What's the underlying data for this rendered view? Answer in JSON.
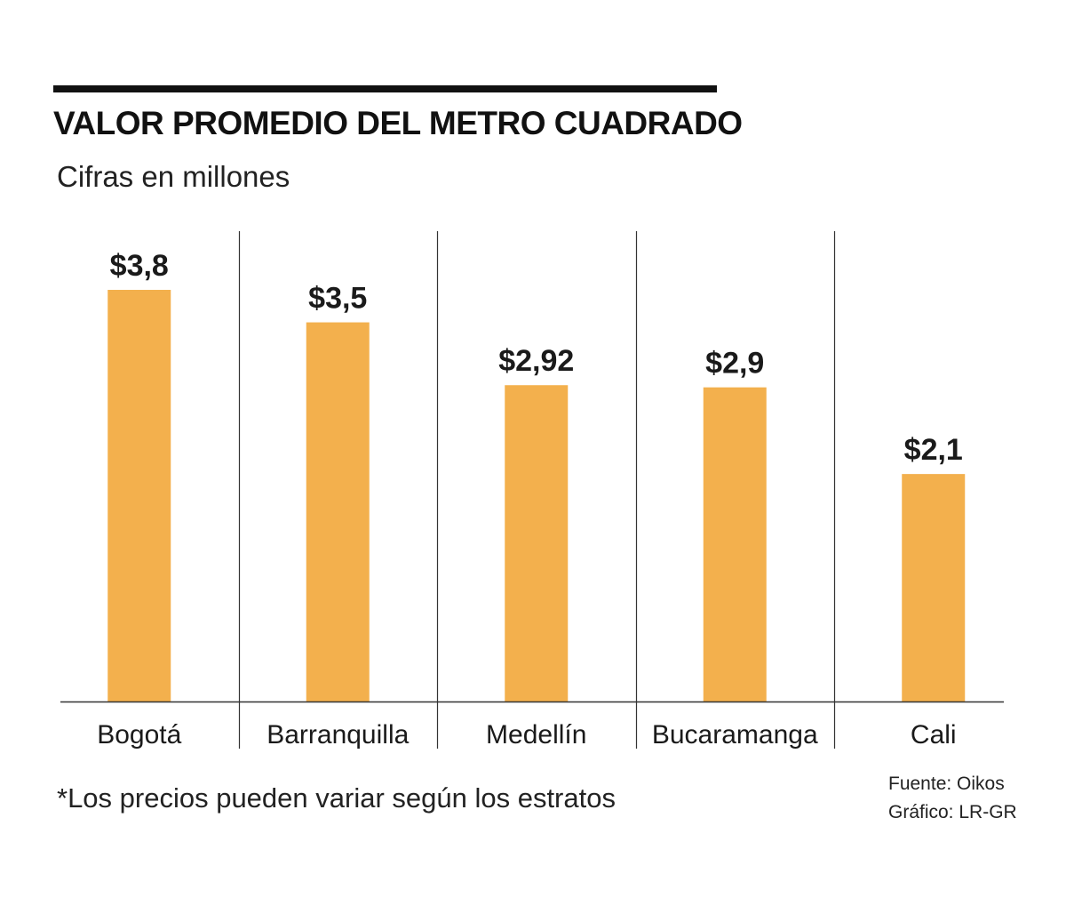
{
  "header": {
    "title": "VALOR PROMEDIO DEL METRO CUADRADO",
    "subtitle": "Cifras en millones"
  },
  "footer": {
    "note": "*Los precios pueden variar según los estratos",
    "source": "Fuente: Oikos",
    "credit": "Gráfico: LR-GR"
  },
  "colors": {
    "bar": "#F3B04D",
    "rule": "#111111",
    "divider": "#333333",
    "text": "#1a1a1a"
  },
  "chart_data": {
    "type": "bar",
    "title": "VALOR PROMEDIO DEL METRO CUADRADO",
    "subtitle": "Cifras en millones",
    "xlabel": "",
    "ylabel": "",
    "categories": [
      "Bogotá",
      "Barranquilla",
      "Medellín",
      "Bucaramanga",
      "Cali"
    ],
    "values": [
      3.8,
      3.5,
      2.92,
      2.9,
      2.1
    ],
    "value_labels": [
      "$3,8",
      "$3,5",
      "$2,92",
      "$2,9",
      "$2,1"
    ],
    "ylim": [
      0,
      3.8
    ],
    "grid": false,
    "legend": "none"
  }
}
